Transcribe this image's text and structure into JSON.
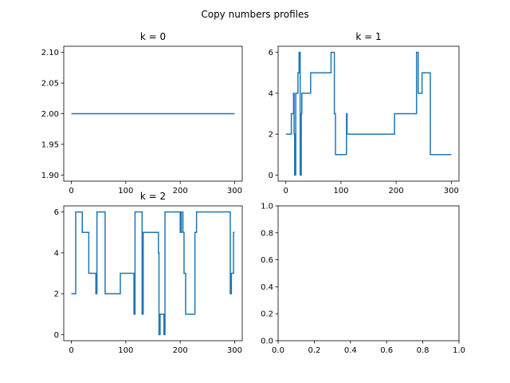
{
  "figure": {
    "suptitle": "Copy numbers profiles",
    "line_color": "#1f77b4",
    "background": "#ffffff"
  },
  "chart_data": [
    {
      "type": "line",
      "title": "k = 0",
      "xlim": [
        -14,
        314
      ],
      "ylim": [
        1.89,
        2.11
      ],
      "xticks": [
        0,
        100,
        200,
        300
      ],
      "xtick_labels": [
        "0",
        "100",
        "200",
        "300"
      ],
      "yticks": [
        1.9,
        1.95,
        2.0,
        2.05,
        2.1
      ],
      "ytick_labels": [
        "1.90",
        "1.95",
        "2.00",
        "2.05",
        "2.10"
      ],
      "series": [
        {
          "x": [
            0,
            300
          ],
          "y": [
            2,
            2
          ]
        }
      ]
    },
    {
      "type": "line",
      "title": "k = 1",
      "xlim": [
        -14,
        314
      ],
      "ylim": [
        -0.3,
        6.3
      ],
      "xticks": [
        0,
        100,
        200,
        300
      ],
      "xtick_labels": [
        "0",
        "100",
        "200",
        "300"
      ],
      "yticks": [
        0,
        2,
        4,
        6
      ],
      "ytick_labels": [
        "0",
        "2",
        "4",
        "6"
      ],
      "series": [
        {
          "x": [
            0,
            10,
            10,
            14,
            14,
            15,
            15,
            16,
            16,
            18,
            18,
            22,
            22,
            24,
            24,
            26,
            26,
            28,
            28,
            29,
            29,
            30,
            30,
            45,
            45,
            82,
            82,
            88,
            88,
            90,
            90,
            100,
            100,
            110,
            110,
            111,
            111,
            113,
            113,
            197,
            197,
            237,
            237,
            240,
            240,
            247,
            247,
            262,
            262,
            300
          ],
          "y": [
            2,
            2,
            3,
            3,
            4,
            4,
            2,
            2,
            0,
            0,
            4,
            4,
            5,
            5,
            6,
            6,
            0,
            0,
            3,
            3,
            4,
            4,
            4,
            4,
            5,
            5,
            6,
            6,
            3,
            3,
            1,
            1,
            1,
            1,
            3,
            3,
            2,
            2,
            2,
            2,
            3,
            3,
            6,
            6,
            4,
            4,
            5,
            5,
            1,
            1
          ]
        }
      ]
    },
    {
      "type": "line",
      "title": "k = 2",
      "xlim": [
        -14,
        314
      ],
      "ylim": [
        -0.3,
        6.3
      ],
      "xticks": [
        0,
        100,
        200,
        300
      ],
      "xtick_labels": [
        "0",
        "100",
        "200",
        "300"
      ],
      "yticks": [
        0,
        2,
        4,
        6
      ],
      "ytick_labels": [
        "0",
        "2",
        "4",
        "6"
      ],
      "series": [
        {
          "x": [
            0,
            8,
            8,
            20,
            20,
            22,
            22,
            32,
            32,
            35,
            35,
            45,
            45,
            47,
            47,
            50,
            50,
            62,
            62,
            90,
            90,
            110,
            110,
            115,
            115,
            117,
            117,
            130,
            130,
            132,
            132,
            135,
            135,
            160,
            160,
            161,
            161,
            163,
            163,
            168,
            168,
            170,
            170,
            172,
            172,
            175,
            175,
            200,
            200,
            202,
            202,
            205,
            205,
            207,
            207,
            210,
            210,
            212,
            212,
            227,
            227,
            230,
            230,
            292,
            292,
            294,
            294,
            298,
            298,
            300
          ],
          "y": [
            2,
            2,
            6,
            6,
            5,
            5,
            5,
            5,
            3,
            3,
            3,
            3,
            2,
            2,
            6,
            6,
            6,
            6,
            2,
            2,
            3,
            3,
            3,
            3,
            1,
            1,
            6,
            6,
            1,
            1,
            5,
            5,
            5,
            5,
            4,
            4,
            0,
            0,
            1,
            1,
            1,
            1,
            0,
            0,
            6,
            6,
            6,
            6,
            5,
            5,
            6,
            6,
            5,
            5,
            3,
            3,
            1,
            1,
            1,
            1,
            5,
            5,
            6,
            6,
            2,
            2,
            3,
            3,
            5,
            5
          ]
        }
      ]
    },
    {
      "type": "line",
      "title": "",
      "xlim": [
        0,
        1
      ],
      "ylim": [
        0,
        1
      ],
      "xticks": [
        0,
        0.2,
        0.4,
        0.6,
        0.8,
        1.0
      ],
      "xtick_labels": [
        "0.0",
        "0.2",
        "0.4",
        "0.6",
        "0.8",
        "1.0"
      ],
      "yticks": [
        0,
        0.2,
        0.4,
        0.6,
        0.8,
        1.0
      ],
      "ytick_labels": [
        "0.0",
        "0.2",
        "0.4",
        "0.6",
        "0.8",
        "1.0"
      ],
      "series": []
    }
  ]
}
